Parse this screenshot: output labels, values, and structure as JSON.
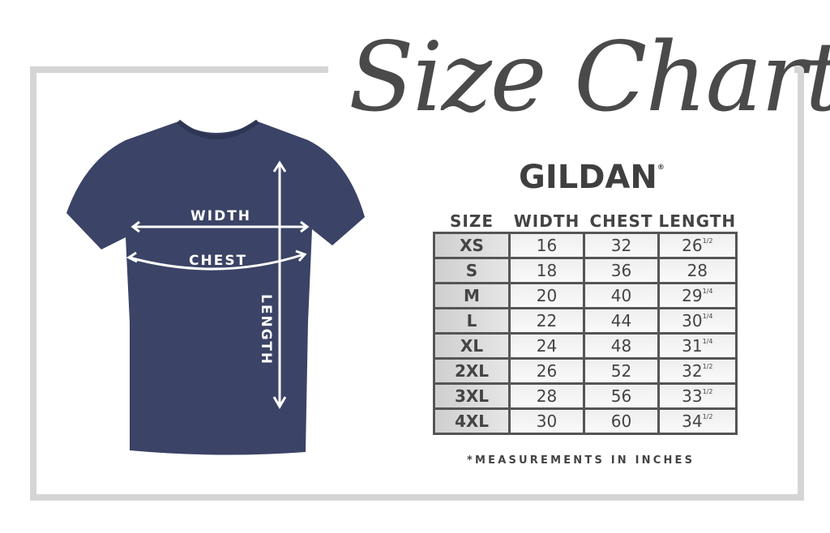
{
  "title": "Size Chart",
  "brand": {
    "name": "GILDAN",
    "mark": "®"
  },
  "shirt": {
    "color": "#3b4366",
    "labels": {
      "width": "WIDTH",
      "chest": "CHEST",
      "length": "LENGTH"
    }
  },
  "table": {
    "headers": [
      "SIZE",
      "WIDTH",
      "CHEST",
      "LENGTH"
    ],
    "rows": [
      {
        "size": "XS",
        "width": "16",
        "chest": "32",
        "length": "26",
        "length_frac": "1/2"
      },
      {
        "size": "S",
        "width": "18",
        "chest": "36",
        "length": "28",
        "length_frac": ""
      },
      {
        "size": "M",
        "width": "20",
        "chest": "40",
        "length": "29",
        "length_frac": "1/4"
      },
      {
        "size": "L",
        "width": "22",
        "chest": "44",
        "length": "30",
        "length_frac": "1/4"
      },
      {
        "size": "XL",
        "width": "24",
        "chest": "48",
        "length": "31",
        "length_frac": "1/4"
      },
      {
        "size": "2XL",
        "width": "26",
        "chest": "52",
        "length": "32",
        "length_frac": "1/2"
      },
      {
        "size": "3XL",
        "width": "28",
        "chest": "56",
        "length": "33",
        "length_frac": "1/2"
      },
      {
        "size": "4XL",
        "width": "30",
        "chest": "60",
        "length": "34",
        "length_frac": "1/2"
      }
    ]
  },
  "note": "*MEASUREMENTS IN INCHES"
}
